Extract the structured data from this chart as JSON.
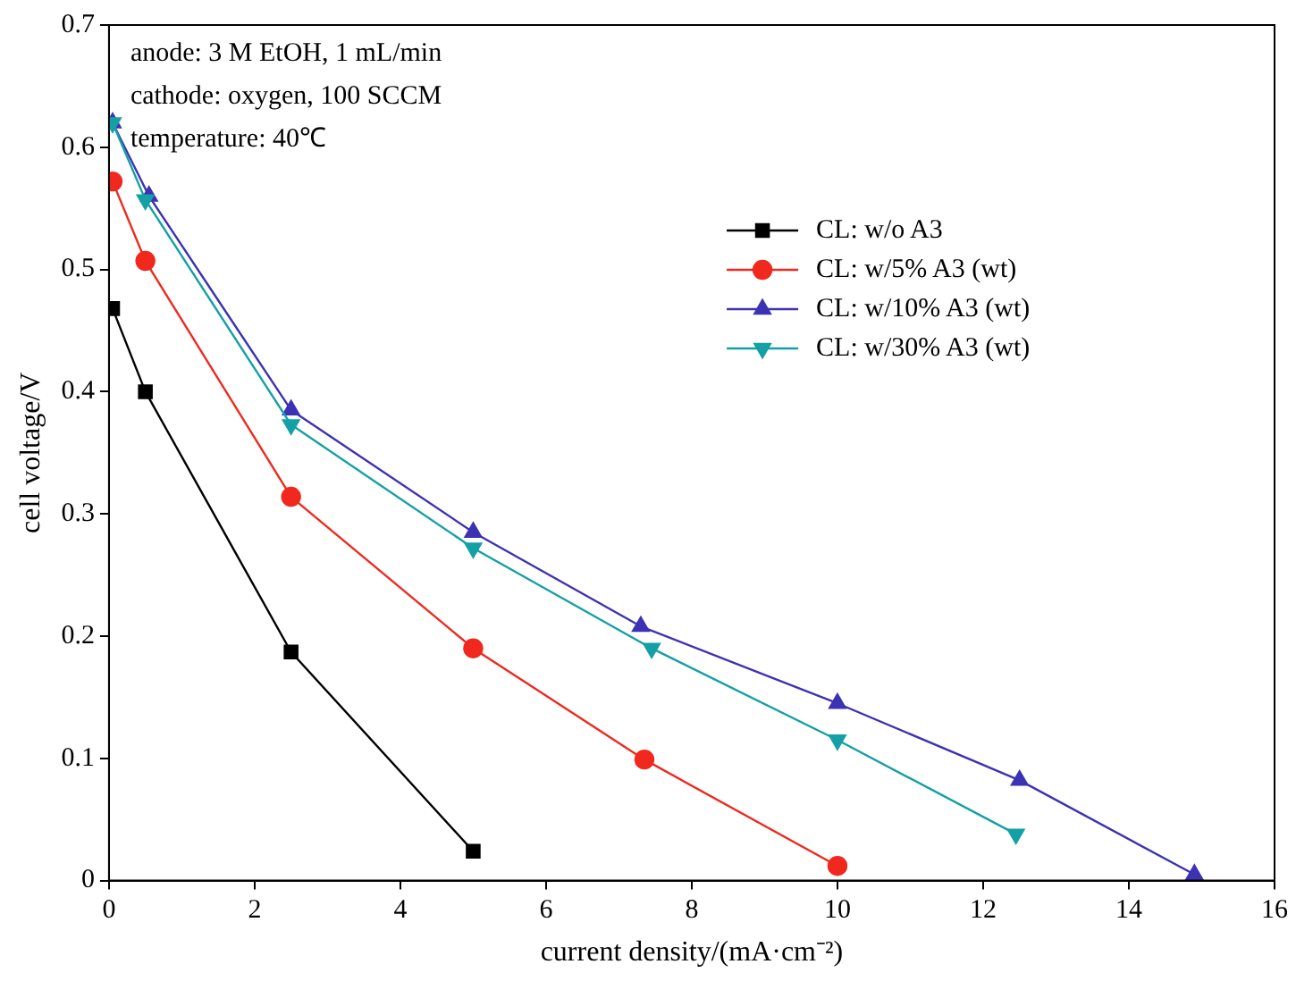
{
  "chart_data": {
    "type": "line",
    "xlabel": "current density/(mA·cm⁻²)",
    "ylabel": "cell voltage/V",
    "annotations": [
      "anode: 3 M EtOH, 1 mL/min",
      "cathode: oxygen, 100 SCCM",
      "temperature: 40℃"
    ],
    "xlim": [
      0,
      16
    ],
    "xticks": [
      0,
      2,
      4,
      6,
      8,
      10,
      12,
      14,
      16
    ],
    "ylim": [
      0,
      0.7
    ],
    "yticks": [
      0,
      0.1,
      0.2,
      0.3,
      0.4,
      0.5,
      0.6,
      0.7
    ],
    "grid": false,
    "legend": "right",
    "line_style": "solid",
    "series": [
      {
        "name": "CL: w/o A3",
        "color": "#000000",
        "marker": "square",
        "x": [
          0.05,
          0.5,
          2.5,
          5
        ],
        "values": [
          0.468,
          0.4,
          0.187,
          0.024
        ]
      },
      {
        "name": "CL: w/5% A3 (wt)",
        "color": "#f0281e",
        "marker": "circle",
        "x": [
          0.05,
          0.5,
          2.5,
          5,
          7.35,
          10
        ],
        "values": [
          0.572,
          0.507,
          0.314,
          0.19,
          0.099,
          0.012
        ]
      },
      {
        "name": "CL: w/10% A3 (wt)",
        "color": "#3c32b4",
        "marker": "triangle",
        "x": [
          0.05,
          0.55,
          2.5,
          5,
          7.3,
          10,
          12.5,
          14.9
        ],
        "values": [
          0.62,
          0.56,
          0.385,
          0.285,
          0.208,
          0.145,
          0.082,
          0.005
        ]
      },
      {
        "name": "CL: w/30% A3 (wt)",
        "color": "#14a0a5",
        "marker": "triangle-down",
        "x": [
          0.05,
          0.5,
          2.5,
          5,
          7.45,
          10,
          12.45
        ],
        "values": [
          0.62,
          0.557,
          0.373,
          0.272,
          0.19,
          0.115,
          0.038
        ]
      }
    ]
  }
}
